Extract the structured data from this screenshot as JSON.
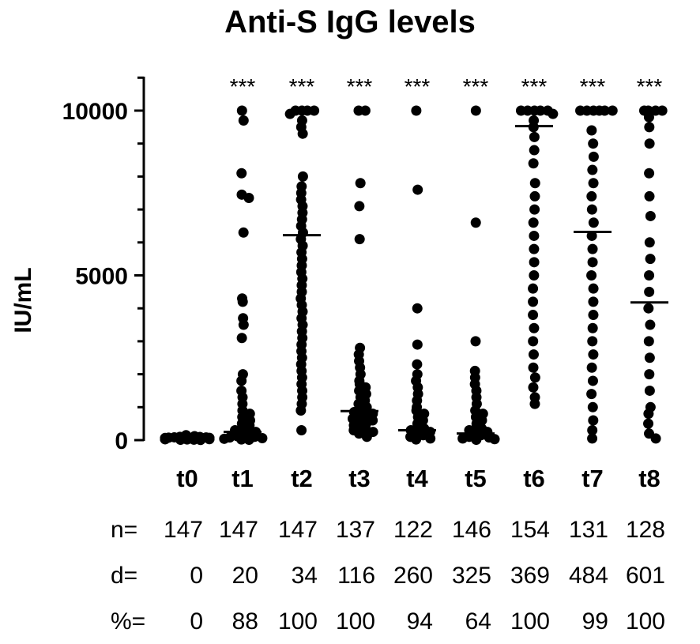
{
  "chart_data": {
    "type": "scatter",
    "title": "Anti-S IgG levels",
    "ylabel": "IU/mL",
    "xlabel": "",
    "ylim": [
      0,
      11000
    ],
    "y_ticks": [
      "0",
      "5000",
      "10000"
    ],
    "y_tick_values": [
      0,
      5000,
      10000
    ],
    "categories": [
      "t0",
      "t1",
      "t2",
      "t3",
      "t4",
      "t5",
      "t6",
      "t7",
      "t8"
    ],
    "significance": [
      "",
      "***",
      "***",
      "***",
      "***",
      "***",
      "***",
      "***",
      "***"
    ],
    "medians": [
      20,
      250,
      6220,
      880,
      300,
      200,
      9530,
      6320,
      4180
    ],
    "grid": false,
    "legend": "none",
    "series": [
      {
        "category": "t0",
        "values": [
          10,
          20,
          30,
          40,
          50,
          60,
          70,
          80,
          100,
          120,
          150,
          5,
          15,
          25,
          35,
          45,
          55,
          65,
          75,
          85,
          95
        ]
      },
      {
        "category": "t1",
        "values": [
          10000,
          9700,
          8100,
          7450,
          7350,
          6300,
          4300,
          4200,
          3700,
          3500,
          3100,
          2000,
          1800,
          1500,
          1300,
          1100,
          900,
          800,
          700,
          600,
          500,
          450,
          400,
          350,
          300,
          250,
          200,
          150,
          120,
          100,
          80,
          60,
          40,
          20,
          10
        ]
      },
      {
        "category": "t2",
        "values": [
          10000,
          10000,
          10000,
          10000,
          9900,
          9700,
          9500,
          9300,
          8000,
          7700,
          7500,
          7300,
          7100,
          6900,
          6700,
          6500,
          6300,
          6100,
          5900,
          5700,
          5500,
          5300,
          5100,
          4900,
          4700,
          4500,
          4300,
          4100,
          3900,
          3700,
          3500,
          3300,
          3100,
          2900,
          2700,
          2500,
          2300,
          2100,
          1900,
          1700,
          1500,
          1300,
          1100,
          900,
          300
        ]
      },
      {
        "category": "t3",
        "values": [
          10000,
          10000,
          7800,
          7100,
          6100,
          2800,
          2600,
          2400,
          2200,
          2000,
          1800,
          1600,
          1400,
          1200,
          1000,
          900,
          800,
          700,
          600,
          500,
          400,
          300,
          200,
          100,
          1700,
          1500,
          1300,
          1100,
          950,
          850,
          750,
          650,
          550,
          450,
          350,
          250
        ]
      },
      {
        "category": "t4",
        "values": [
          10000,
          7600,
          4000,
          2900,
          2300,
          2000,
          1800,
          1600,
          1400,
          1200,
          1000,
          900,
          800,
          700,
          600,
          500,
          400,
          350,
          300,
          250,
          200,
          150,
          100,
          50,
          20
        ]
      },
      {
        "category": "t5",
        "values": [
          10000,
          6600,
          3000,
          2100,
          1900,
          1700,
          1500,
          1300,
          1100,
          900,
          800,
          700,
          600,
          500,
          400,
          350,
          300,
          250,
          200,
          150,
          100,
          80,
          50,
          30,
          10
        ]
      },
      {
        "category": "t6",
        "values": [
          10000,
          10000,
          10000,
          10000,
          10000,
          9900,
          9700,
          9500,
          9200,
          8800,
          8400,
          7800,
          7400,
          7000,
          6600,
          6200,
          5800,
          5400,
          5000,
          4600,
          4200,
          3800,
          3400,
          3000,
          2600,
          2200,
          1900,
          1600,
          1300,
          1100
        ]
      },
      {
        "category": "t7",
        "values": [
          10000,
          10000,
          10000,
          10000,
          10000,
          10000,
          9400,
          9000,
          8600,
          8200,
          7800,
          7400,
          7000,
          6600,
          6200,
          5800,
          5400,
          5000,
          4600,
          4200,
          3800,
          3400,
          3000,
          2600,
          2200,
          1800,
          1400,
          1000,
          600,
          300,
          50
        ]
      },
      {
        "category": "t8",
        "values": [
          10000,
          10000,
          10000,
          10000,
          9800,
          9500,
          9000,
          8100,
          7400,
          6800,
          6000,
          5500,
          5000,
          4500,
          4000,
          3500,
          3000,
          2500,
          2000,
          1500,
          1000,
          800,
          500,
          200,
          50
        ]
      }
    ]
  },
  "stats_table": {
    "rows": [
      {
        "label": "n=",
        "values": [
          "147",
          "147",
          "147",
          "137",
          "122",
          "146",
          "154",
          "131",
          "128"
        ]
      },
      {
        "label": "d=",
        "values": [
          "0",
          "20",
          "34",
          "116",
          "260",
          "325",
          "369",
          "484",
          "601"
        ]
      },
      {
        "label": "%=",
        "values": [
          "0",
          "88",
          "100",
          "100",
          "94",
          "64",
          "100",
          "99",
          "100"
        ]
      }
    ]
  }
}
